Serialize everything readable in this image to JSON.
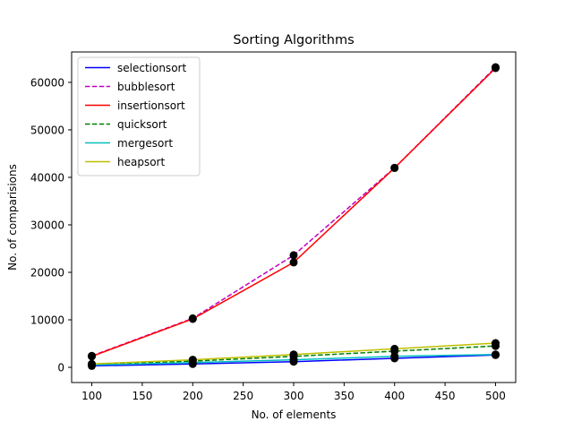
{
  "chart_data": {
    "type": "line",
    "title": "Sorting Algorithms",
    "xlabel": "No. of elements",
    "ylabel": "No. of comparisions",
    "x": [
      100,
      200,
      300,
      400,
      500
    ],
    "xlim": [
      80,
      520
    ],
    "ylim": [
      -3200,
      66400
    ],
    "xticks": [
      100,
      150,
      200,
      250,
      300,
      350,
      400,
      450,
      500
    ],
    "yticks": [
      0,
      10000,
      20000,
      30000,
      40000,
      50000,
      60000
    ],
    "grid": false,
    "legend_position": "upper left",
    "series": [
      {
        "name": "selectionsort",
        "values": [
          300,
          700,
          1200,
          1900,
          2600
        ],
        "color": "#0000ff",
        "dash": "solid"
      },
      {
        "name": "bubblesort",
        "values": [
          2400,
          10300,
          23600,
          42000,
          63200
        ],
        "color": "#bf00bf",
        "dash": "dashed"
      },
      {
        "name": "insertionsort",
        "values": [
          2300,
          10200,
          22100,
          42000,
          63000
        ],
        "color": "#ff0000",
        "dash": "solid"
      },
      {
        "name": "quicksort",
        "values": [
          600,
          1300,
          2300,
          3400,
          4500
        ],
        "color": "#008000",
        "dash": "dashed"
      },
      {
        "name": "mergesort",
        "values": [
          500,
          1000,
          1600,
          2300,
          2700
        ],
        "color": "#00bfbf",
        "dash": "solid"
      },
      {
        "name": "heapsort",
        "values": [
          700,
          1600,
          2700,
          3900,
          5100
        ],
        "color": "#bfbf00",
        "dash": "solid"
      }
    ]
  }
}
